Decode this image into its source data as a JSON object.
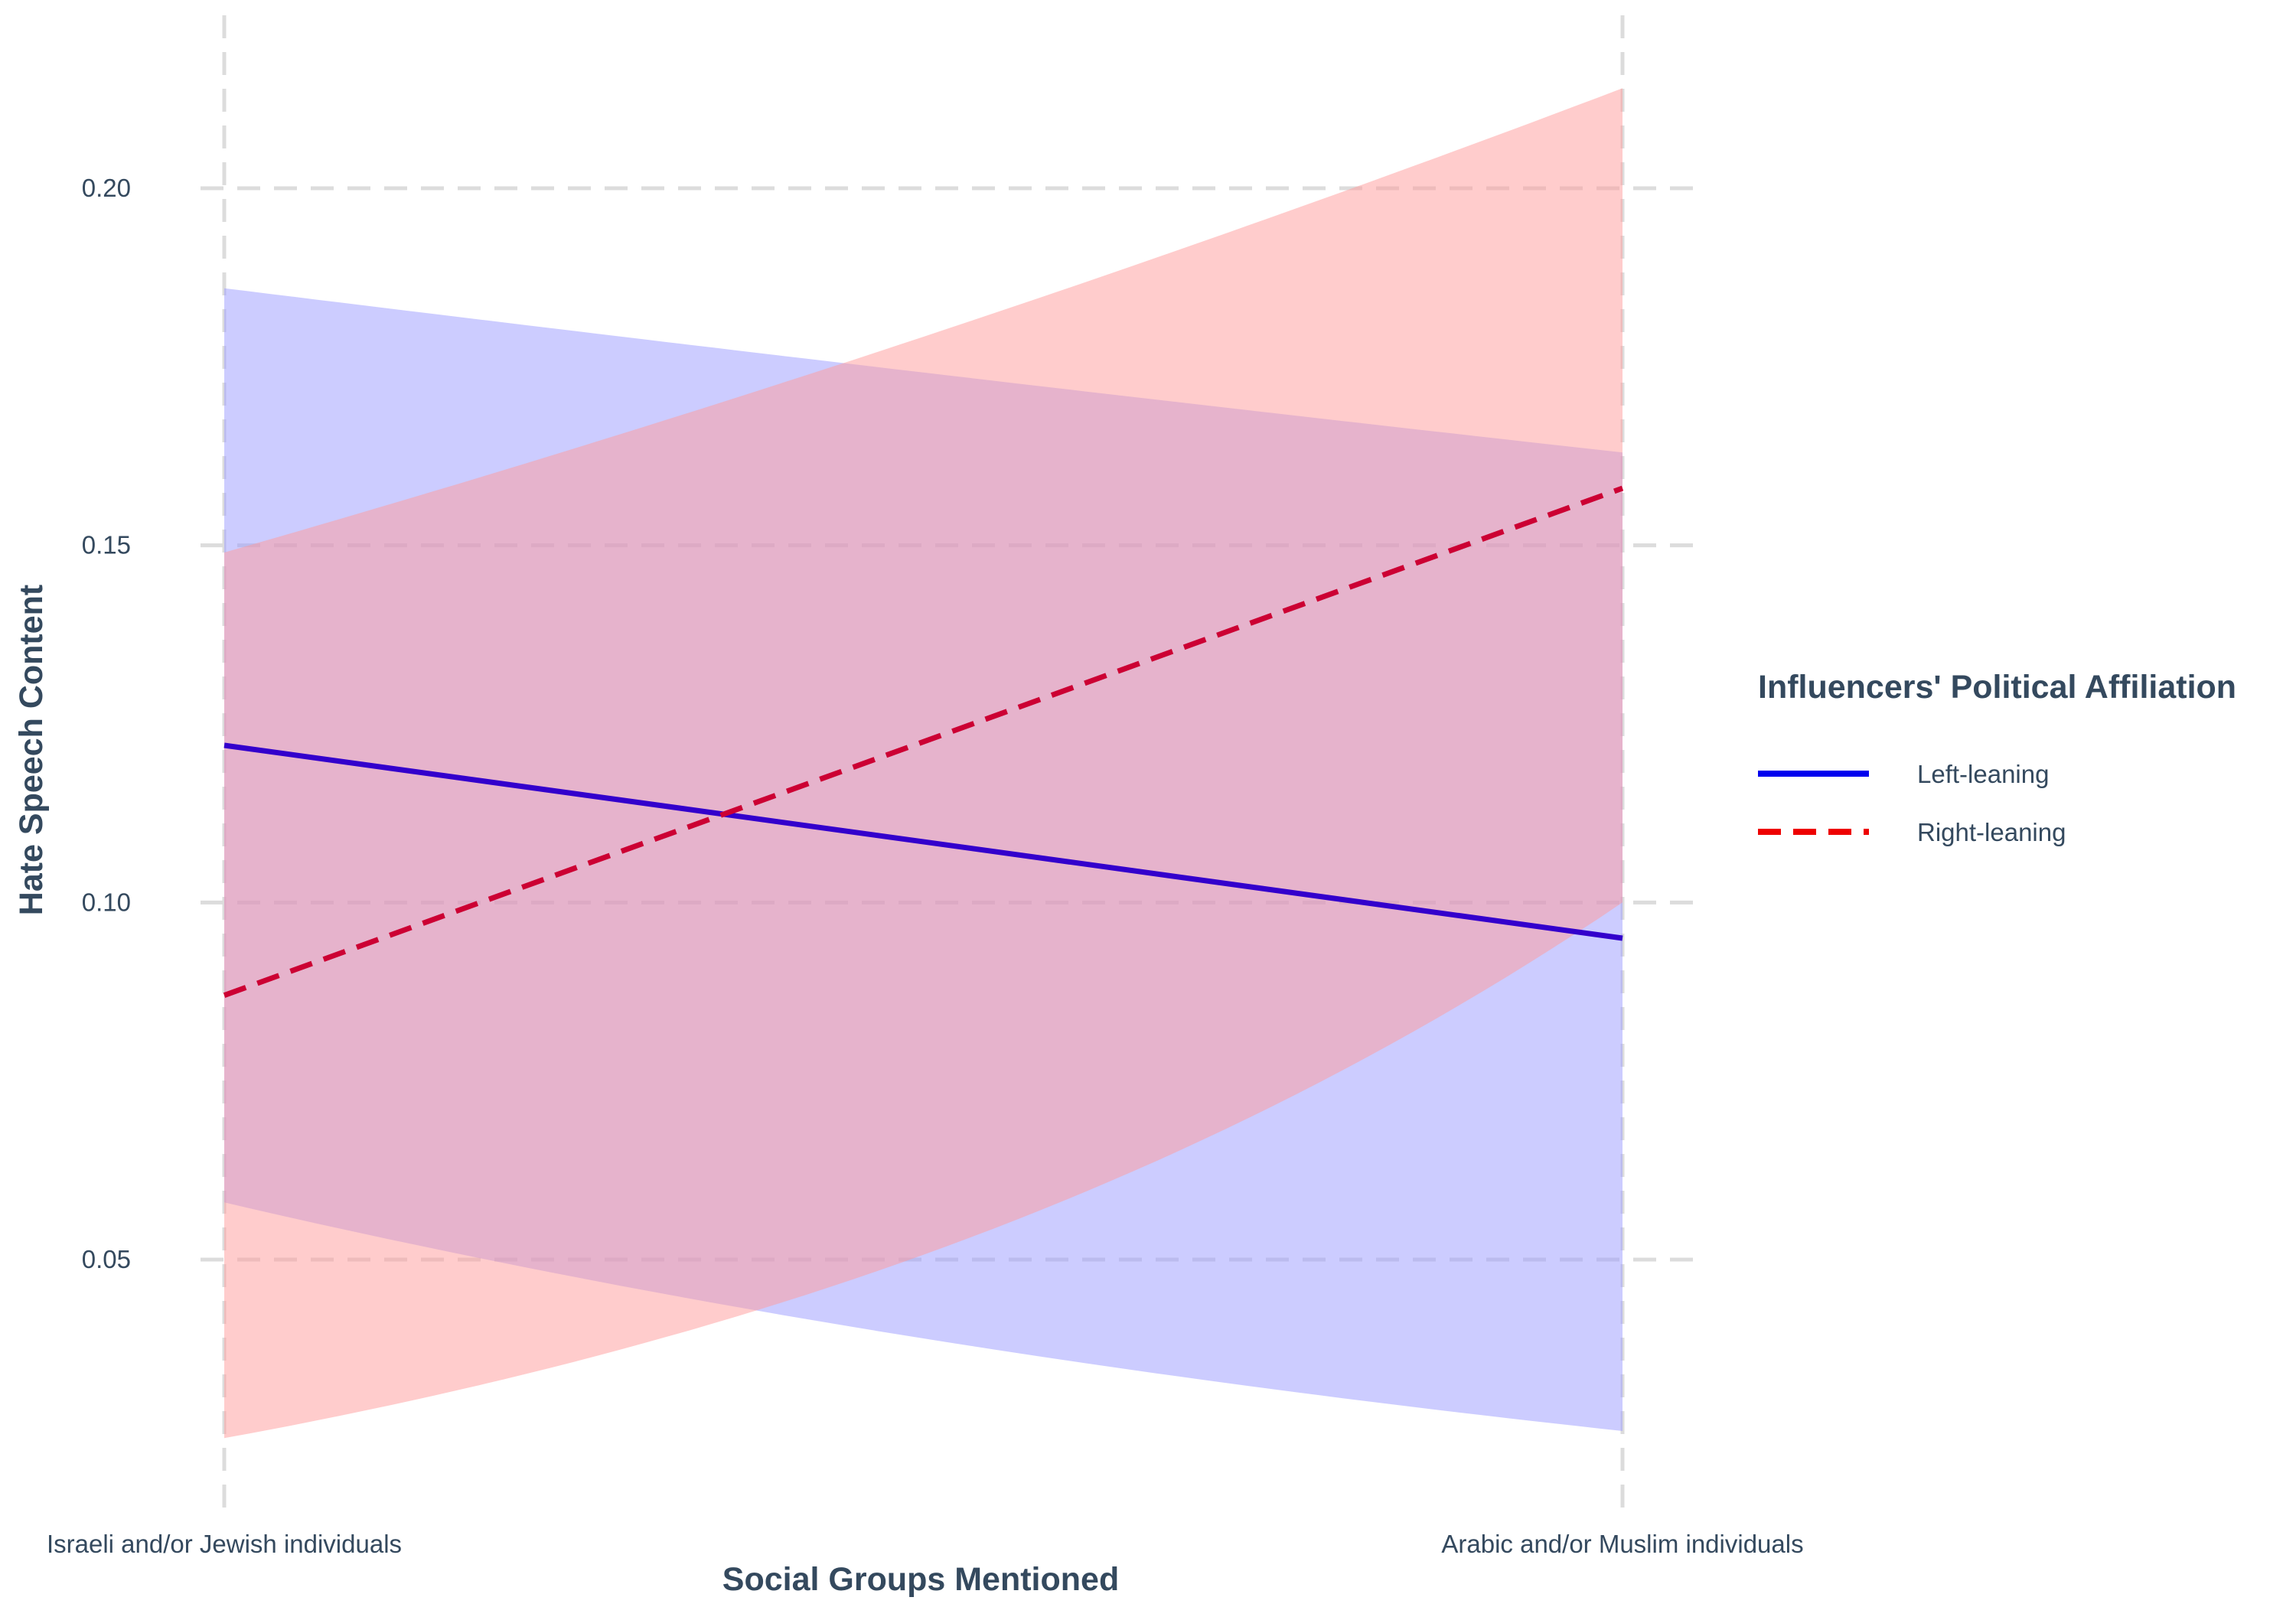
{
  "chart_data": {
    "type": "line",
    "title": "",
    "xlabel": "Social Groups Mentioned",
    "ylabel": "Hate Speech Content",
    "categories": [
      "Israeli and/or Jewish individuals",
      "Arabic and/or Muslim individuals"
    ],
    "ylim": [
      0.017,
      0.224
    ],
    "yticks": [
      0.05,
      0.1,
      0.15,
      0.2
    ],
    "ytick_labels": [
      "0.05",
      "0.10",
      "0.15",
      "0.20"
    ],
    "grid": true,
    "legend": {
      "title": "Influencers' Political Affiliation",
      "placement": "right"
    },
    "series": [
      {
        "name": "Left-leaning",
        "values": [
          0.122,
          0.095
        ],
        "ci_lower": [
          0.058,
          0.026
        ],
        "ci_upper": [
          0.186,
          0.163
        ],
        "line_color": "#3300cc",
        "legend_color": "#0000ee",
        "fill_color": "#9999ff",
        "dash": "solid"
      },
      {
        "name": "Right-leaning",
        "values": [
          0.087,
          0.158
        ],
        "ci_lower": [
          0.025,
          0.1
        ],
        "ci_upper": [
          0.149,
          0.214
        ],
        "line_color": "#cc0033",
        "legend_color": "#ee0000",
        "fill_color": "#ff9999",
        "dash": "dashed"
      }
    ]
  }
}
